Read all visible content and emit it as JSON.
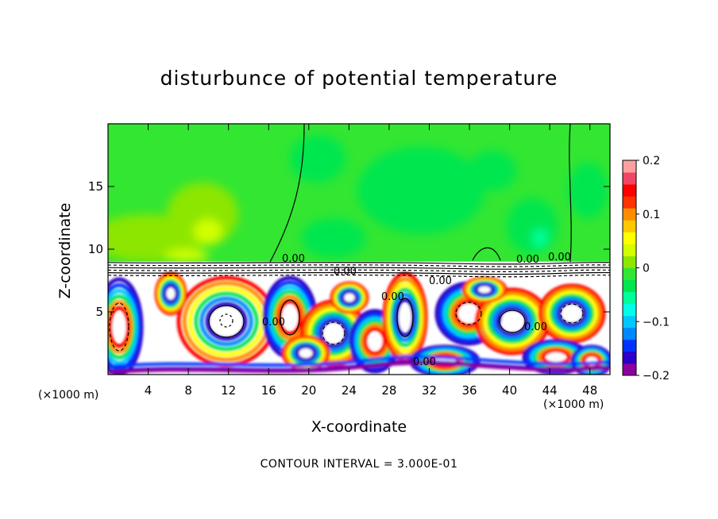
{
  "chart_data": {
    "type": "heatmap",
    "title": "disturbunce of potential temperature",
    "xlabel": "X-coordinate",
    "ylabel": "Z-coordinate",
    "x_unit_label": "(×1000 m)",
    "x_unit_label_right": "(×1000 m)",
    "xlim": [
      0,
      50
    ],
    "ylim": [
      0,
      20
    ],
    "x_ticks": [
      4,
      8,
      12,
      16,
      20,
      24,
      28,
      32,
      36,
      40,
      44,
      48
    ],
    "y_ticks": [
      5,
      10,
      15
    ],
    "colorbar": {
      "range": [
        -0.2,
        0.2
      ],
      "tick_values": [
        -0.2,
        -0.1,
        0,
        0.1,
        0.2
      ],
      "tick_labels": [
        "−0.2",
        "−0.1",
        "0",
        "0.1",
        "0.2"
      ],
      "colors": [
        "#8c00a0",
        "#2a00c8",
        "#0032ff",
        "#0088ff",
        "#00c8ff",
        "#00ffe6",
        "#00ff9a",
        "#00e650",
        "#32e632",
        "#8ce600",
        "#d2ff00",
        "#ffff00",
        "#ffc800",
        "#ff8c00",
        "#ff3200",
        "#ff0000",
        "#f04664",
        "#ffa0a0"
      ]
    },
    "contour_labels": [
      "0.00"
    ],
    "boundary_layer_top": 9,
    "footnote": "CONTOUR INTERVAL = 3.000E-01"
  },
  "colors": {
    "upper_background": "#32e632",
    "contour_line": "#000000"
  }
}
